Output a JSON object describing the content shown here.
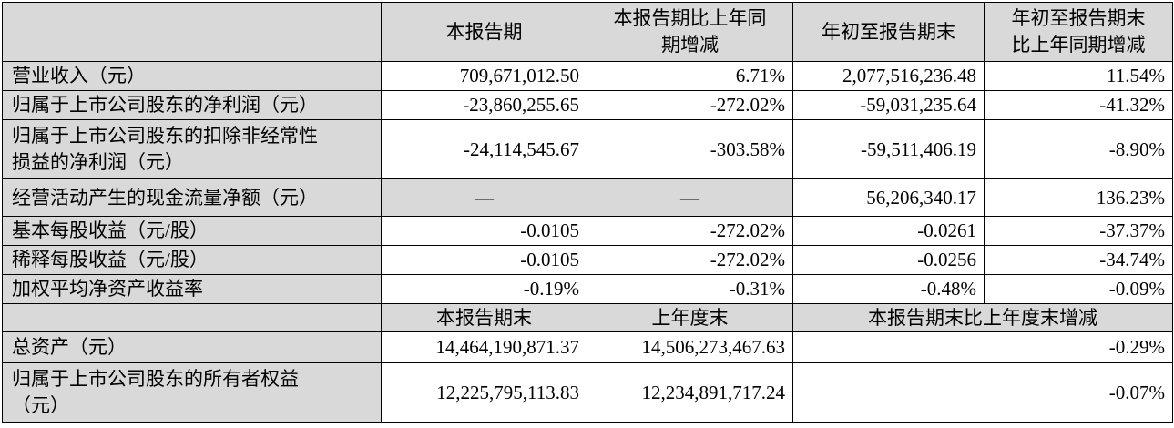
{
  "header": {
    "col1": "本报告期",
    "col2_line1": "本报告期比上年同",
    "col2_line2": "期增减",
    "col3": "年初至报告期末",
    "col4_line1": "年初至报告期末",
    "col4_line2": "比上年同期增减"
  },
  "rows": [
    {
      "label": "营业收入（元）",
      "v1": "709,671,012.50",
      "v2": "6.71%",
      "v3": "2,077,516,236.48",
      "v4": "11.54%"
    },
    {
      "label": "归属于上市公司股东的净利润（元）",
      "v1": "-23,860,255.65",
      "v2": "-272.02%",
      "v3": "-59,031,235.64",
      "v4": "-41.32%"
    },
    {
      "label_line1": "归属于上市公司股东的扣除非经常性",
      "label_line2": "损益的净利润（元）",
      "v1": "-24,114,545.67",
      "v2": "-303.58%",
      "v3": "-59,511,406.19",
      "v4": "-8.90%"
    },
    {
      "label": "经营活动产生的现金流量净额（元）",
      "v1": "—",
      "v2": "—",
      "v3": "56,206,340.17",
      "v4": "136.23%"
    },
    {
      "label": "基本每股收益（元/股）",
      "v1": "-0.0105",
      "v2": "-272.02%",
      "v3": "-0.0261",
      "v4": "-37.37%"
    },
    {
      "label": "稀释每股收益（元/股）",
      "v1": "-0.0105",
      "v2": "-272.02%",
      "v3": "-0.0256",
      "v4": "-34.74%"
    },
    {
      "label": "加权平均净资产收益率",
      "v1": "-0.19%",
      "v2": "-0.31%",
      "v3": "-0.48%",
      "v4": "-0.09%"
    }
  ],
  "subheader": {
    "col1": "本报告期末",
    "col2": "上年度末",
    "col3": "本报告期末比上年度末增减"
  },
  "rows2": [
    {
      "label": "总资产（元）",
      "v1": "14,464,190,871.37",
      "v2": "14,506,273,467.63",
      "v3": "-0.29%"
    },
    {
      "label_line1": "归属于上市公司股东的所有者权益",
      "label_line2": "（元）",
      "v1": "12,225,795,113.83",
      "v2": "12,234,891,717.24",
      "v3": "-0.07%"
    }
  ],
  "colors": {
    "header_shade": "#d9d9d9",
    "border": "#000000"
  }
}
